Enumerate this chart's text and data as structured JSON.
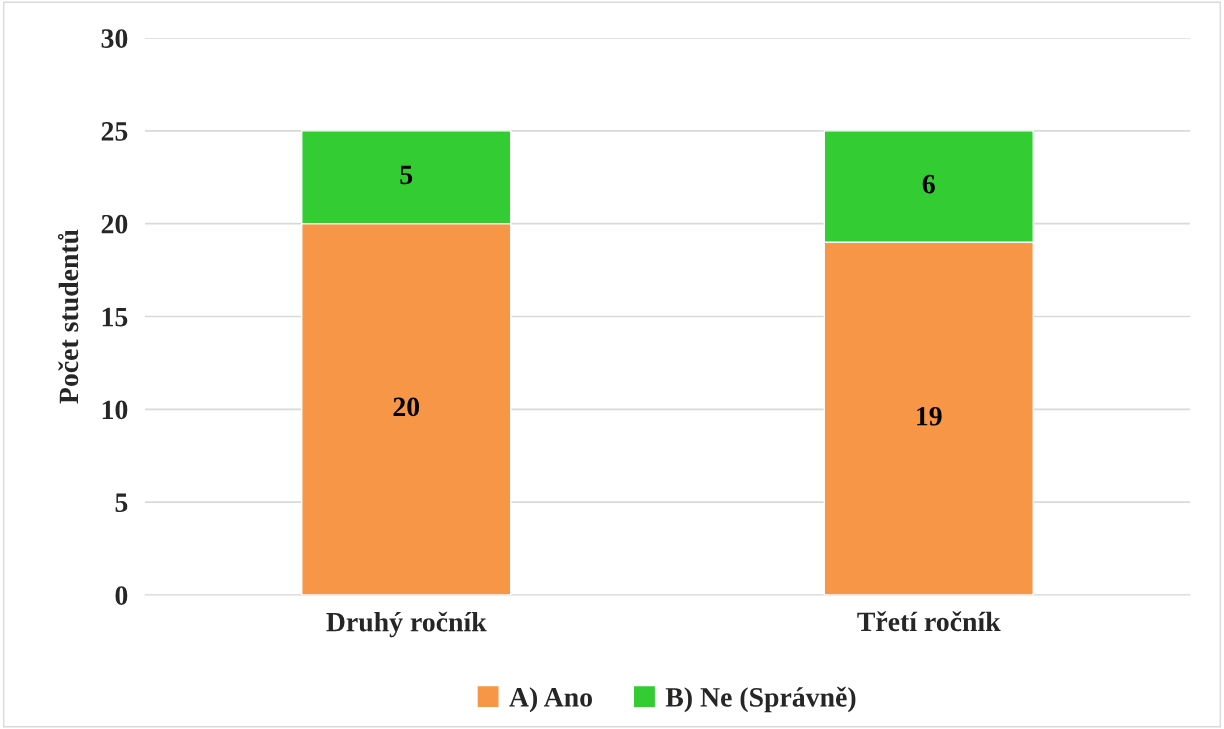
{
  "chart_data": {
    "type": "bar",
    "stacked": true,
    "ylabel": "Počet studentů",
    "categories": [
      "Druhý ročník",
      "Třetí ročník"
    ],
    "series": [
      {
        "name": "A) Ano",
        "color": "#f79646",
        "values": [
          20,
          19
        ]
      },
      {
        "name": "B) Ne (Správně)",
        "color": "#33cc33",
        "values": [
          5,
          6
        ]
      }
    ],
    "ylim": [
      0,
      30
    ],
    "yticks": [
      0,
      5,
      10,
      15,
      20,
      25,
      30
    ],
    "grid": "y",
    "legend": "bottom",
    "data_labels": true
  }
}
